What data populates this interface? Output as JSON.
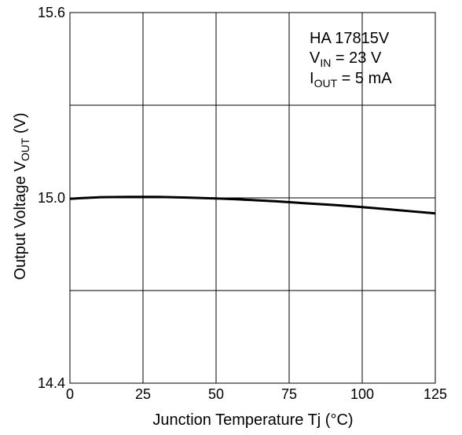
{
  "chart_data": {
    "type": "line",
    "xlabel": {
      "main": "Junction Temperature Tj (",
      "unit": "°C",
      "end": ")"
    },
    "ylabel": {
      "main": "Output Voltage V",
      "sub": "OUT",
      "unit": " (V)"
    },
    "xlim": [
      0,
      125
    ],
    "ylim": [
      14.4,
      15.6
    ],
    "x_ticks": [
      0,
      25,
      50,
      75,
      100,
      125
    ],
    "x_tick_labels": [
      "0",
      "25",
      "50",
      "75",
      "100",
      "125"
    ],
    "y_ticks": [
      14.4,
      14.7,
      15.0,
      15.3,
      15.6
    ],
    "y_tick_labels": [
      "14.4",
      "",
      "15.0",
      "",
      "15.6"
    ],
    "grid": true,
    "series": [
      {
        "x": [
          0,
          10,
          20,
          30,
          40,
          50,
          60,
          70,
          80,
          90,
          100,
          110,
          125
        ],
        "y": [
          14.997,
          15.002,
          15.003,
          15.003,
          15.001,
          14.998,
          14.994,
          14.989,
          14.983,
          14.977,
          14.97,
          14.962,
          14.95
        ]
      }
    ],
    "annotation": {
      "line1": "HA 17815V",
      "line2_main": "V",
      "line2_sub": "IN",
      "line2_rest": " = 23 V",
      "line3_main": "I",
      "line3_sub": "OUT",
      "line3_rest": " = 5 mA"
    }
  }
}
